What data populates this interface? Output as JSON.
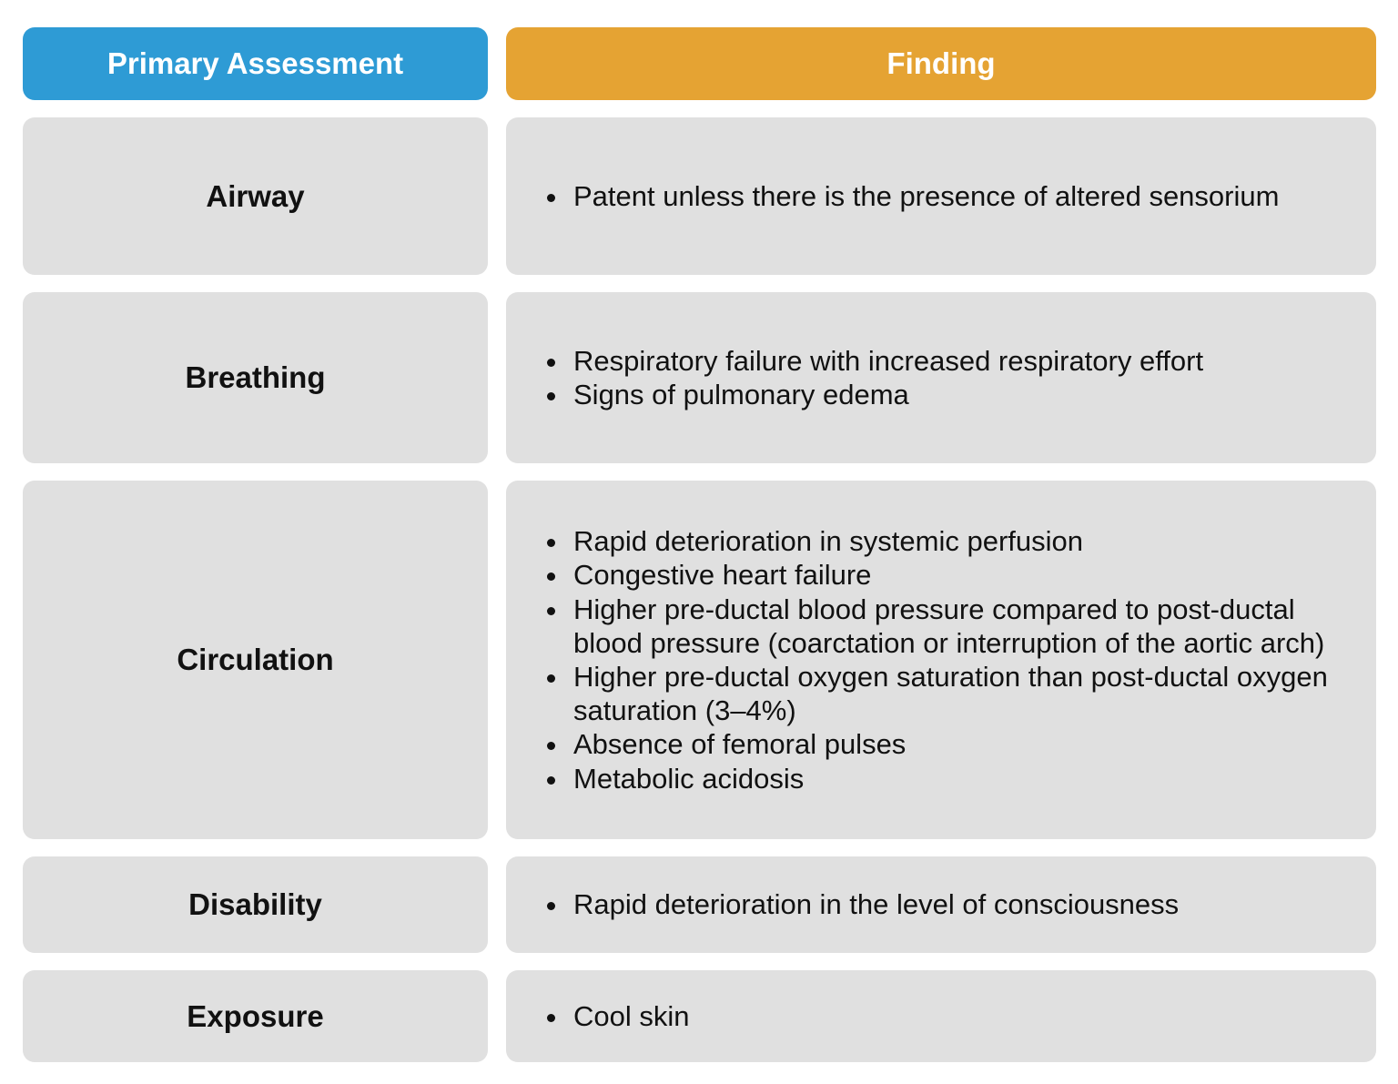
{
  "table": {
    "header": {
      "assessment_label": "Primary Assessment",
      "finding_label": "Finding"
    },
    "rows": [
      {
        "id": "airway",
        "assessment": "Airway",
        "findings": [
          "Patent unless there is the presence of altered sensorium"
        ]
      },
      {
        "id": "breathing",
        "assessment": "Breathing",
        "findings": [
          "Respiratory failure with increased respiratory effort",
          "Signs of pulmonary edema"
        ]
      },
      {
        "id": "circulation",
        "assessment": "Circulation",
        "findings": [
          "Rapid deterioration in systemic perfusion",
          "Congestive heart failure",
          "Higher pre-ductal blood pressure compared to post-ductal blood pressure (coarctation or interruption of the aortic arch)",
          "Higher pre-ductal oxygen saturation than post-ductal oxygen saturation (3–4%)",
          "Absence of femoral pulses",
          "Metabolic acidosis"
        ]
      },
      {
        "id": "disability",
        "assessment": "Disability",
        "findings": [
          "Rapid deterioration in the level of consciousness"
        ]
      },
      {
        "id": "exposure",
        "assessment": "Exposure",
        "findings": [
          "Cool skin"
        ]
      }
    ]
  },
  "colors": {
    "assessment_header_bg": "#2E9BD5",
    "finding_header_bg": "#E5A333",
    "cell_bg": "#E0E0E0",
    "header_text": "#ffffff",
    "body_text": "#111111",
    "page_bg": "#ffffff"
  }
}
